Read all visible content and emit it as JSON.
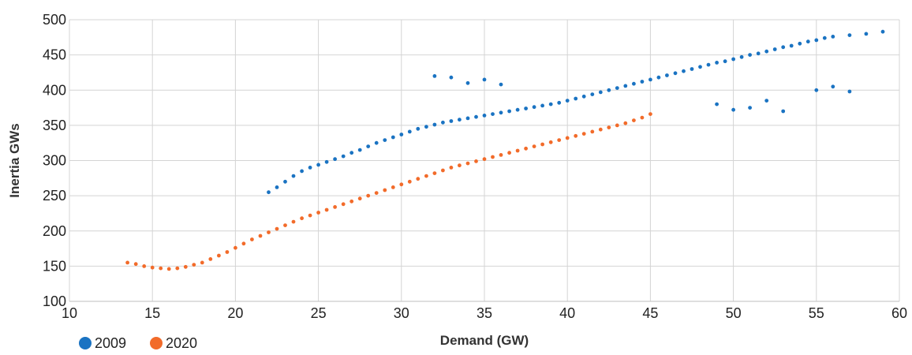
{
  "chart_data": {
    "type": "scatter",
    "title": "",
    "xlabel": "Demand (GW)",
    "ylabel": "Inertia GWs",
    "xlim": [
      10,
      60
    ],
    "ylim": [
      100,
      500
    ],
    "xticks": [
      10,
      15,
      20,
      25,
      30,
      35,
      40,
      45,
      50,
      55,
      60
    ],
    "yticks": [
      100,
      150,
      200,
      250,
      300,
      350,
      400,
      450,
      500
    ],
    "grid": true,
    "legend_position": "bottom-left",
    "series": [
      {
        "name": "2009",
        "color": "#1a73c2",
        "x": [
          22.0,
          22.5,
          23.0,
          23.5,
          24.0,
          24.5,
          25.0,
          25.5,
          26.0,
          26.5,
          27.0,
          27.5,
          28.0,
          28.5,
          29.0,
          29.5,
          30.0,
          30.5,
          31.0,
          31.5,
          32.0,
          32.5,
          33.0,
          33.5,
          34.0,
          34.5,
          35.0,
          35.5,
          36.0,
          36.5,
          37.0,
          37.5,
          38.0,
          38.5,
          39.0,
          39.5,
          40.0,
          40.5,
          41.0,
          41.5,
          42.0,
          42.5,
          43.0,
          43.5,
          44.0,
          44.5,
          45.0,
          45.5,
          46.0,
          46.5,
          47.0,
          47.5,
          48.0,
          48.5,
          49.0,
          49.5,
          50.0,
          50.5,
          51.0,
          51.5,
          52.0,
          52.5,
          53.0,
          53.5,
          54.0,
          54.5,
          55.0,
          55.5,
          56.0,
          57.0,
          58.0,
          59.0,
          32.0,
          33.0,
          34.0,
          35.0,
          36.0,
          49.0,
          50.0,
          51.0,
          52.0,
          53.0,
          55.0,
          56.0,
          57.0
        ],
        "y": [
          255,
          262,
          270,
          278,
          285,
          290,
          294,
          298,
          302,
          306,
          311,
          315,
          320,
          325,
          329,
          333,
          337,
          341,
          345,
          348,
          351,
          354,
          356,
          358,
          360,
          362,
          364,
          366,
          368,
          370,
          372,
          374,
          376,
          378,
          380,
          382,
          385,
          388,
          391,
          394,
          397,
          400,
          403,
          406,
          409,
          412,
          415,
          418,
          421,
          424,
          427,
          430,
          433,
          436,
          439,
          441,
          444,
          447,
          450,
          452,
          455,
          458,
          461,
          463,
          466,
          469,
          471,
          474,
          476,
          478,
          480,
          483,
          420,
          418,
          410,
          415,
          408,
          380,
          372,
          375,
          385,
          370,
          400,
          405,
          398
        ]
      },
      {
        "name": "2020",
        "color": "#f26b2a",
        "x": [
          13.5,
          14.0,
          14.5,
          15.0,
          15.5,
          16.0,
          16.5,
          17.0,
          17.5,
          18.0,
          18.5,
          19.0,
          19.5,
          20.0,
          20.5,
          21.0,
          21.5,
          22.0,
          22.5,
          23.0,
          23.5,
          24.0,
          24.5,
          25.0,
          25.5,
          26.0,
          26.5,
          27.0,
          27.5,
          28.0,
          28.5,
          29.0,
          29.5,
          30.0,
          30.5,
          31.0,
          31.5,
          32.0,
          32.5,
          33.0,
          33.5,
          34.0,
          34.5,
          35.0,
          35.5,
          36.0,
          36.5,
          37.0,
          37.5,
          38.0,
          38.5,
          39.0,
          39.5,
          40.0,
          40.5,
          41.0,
          41.5,
          42.0,
          42.5,
          43.0,
          43.5,
          44.0,
          44.5,
          45.0
        ],
        "y": [
          155,
          153,
          150,
          148,
          147,
          146,
          147,
          149,
          152,
          155,
          160,
          165,
          170,
          176,
          182,
          188,
          193,
          198,
          203,
          208,
          213,
          218,
          222,
          226,
          230,
          234,
          238,
          242,
          246,
          250,
          254,
          258,
          262,
          266,
          270,
          274,
          278,
          282,
          286,
          290,
          293,
          296,
          299,
          302,
          305,
          308,
          311,
          314,
          317,
          320,
          323,
          326,
          329,
          332,
          335,
          338,
          341,
          344,
          347,
          350,
          353,
          357,
          361,
          366
        ]
      }
    ]
  }
}
